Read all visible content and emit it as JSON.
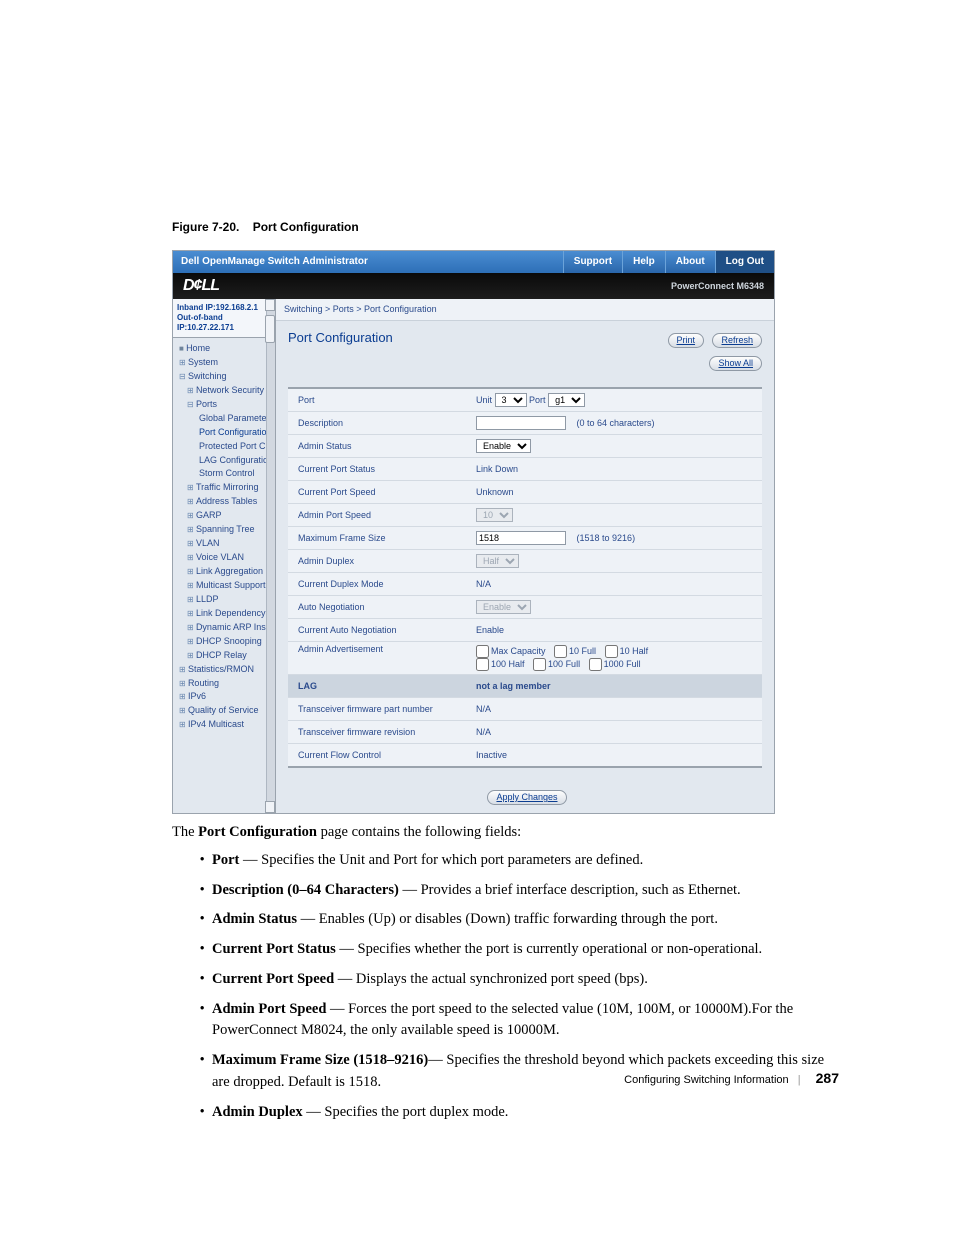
{
  "caption_prefix": "Figure 7-20.",
  "caption_title": "Port Configuration",
  "window_title": "Dell OpenManage Switch Administrator",
  "top_links": [
    "Support",
    "Help",
    "About",
    "Log Out"
  ],
  "brand_logo": "D¢LL",
  "brand_right": "PowerConnect M6348",
  "nav_ip_inband": "Inband IP:192.168.2.1",
  "nav_ip_oob": "Out-of-band IP:10.27.22.171",
  "nav_items": {
    "home": "Home",
    "system": "System",
    "switching": "Switching",
    "network_security": "Network Security",
    "ports": "Ports",
    "global_param": "Global Paramete",
    "port_config": "Port Configuratio",
    "protected_port": "Protected Port C",
    "lag_config": "LAG Configuratio",
    "storm_control": "Storm Control",
    "traffic_mirroring": "Traffic Mirroring",
    "address_tables": "Address Tables",
    "garp": "GARP",
    "spanning_tree": "Spanning Tree",
    "vlan": "VLAN",
    "voice_vlan": "Voice VLAN",
    "link_agg": "Link Aggregation",
    "multicast": "Multicast Support",
    "lldp": "LLDP",
    "link_dep": "Link Dependency",
    "dyn_arp": "Dynamic ARP Insp",
    "dhcp_snoop": "DHCP Snooping",
    "dhcp_relay": "DHCP Relay",
    "stats": "Statistics/RMON",
    "routing": "Routing",
    "ipv6": "IPv6",
    "qos": "Quality of Service",
    "ipv4m": "IPv4 Multicast"
  },
  "breadcrumb": "Switching > Ports > Port Configuration",
  "page_title": "Port Configuration",
  "btn_print": "Print",
  "btn_refresh": "Refresh",
  "btn_showall": "Show All",
  "btn_apply": "Apply Changes",
  "rows": {
    "port_label": "Port",
    "port_unit_label": "Unit",
    "port_unit_value": "3",
    "port_port_label": "Port",
    "port_port_value": "g1",
    "desc_label": "Description",
    "desc_value": "",
    "desc_hint": "(0 to 64 characters)",
    "admin_status_label": "Admin Status",
    "admin_status_value": "Enable",
    "cur_status_label": "Current Port Status",
    "cur_status_value": "Link Down",
    "cur_speed_label": "Current Port Speed",
    "cur_speed_value": "Unknown",
    "admin_speed_label": "Admin Port Speed",
    "admin_speed_value": "10",
    "mfs_label": "Maximum Frame Size",
    "mfs_value": "1518",
    "mfs_hint": "(1518 to 9216)",
    "admin_duplex_label": "Admin Duplex",
    "admin_duplex_value": "Half",
    "cur_duplex_label": "Current Duplex Mode",
    "cur_duplex_value": "N/A",
    "autoneg_label": "Auto Negotiation",
    "autoneg_value": "Enable",
    "cur_autoneg_label": "Current Auto Negotiation",
    "cur_autoneg_value": "Enable",
    "adv_label": "Admin Advertisement",
    "adv_opts": [
      "Max Capacity",
      "10 Full",
      "10 Half",
      "100 Half",
      "100 Full",
      "1000 Full"
    ],
    "lag_label": "LAG",
    "lag_value": "not a lag member",
    "fw_part_label": "Transceiver firmware part number",
    "fw_part_value": "N/A",
    "fw_rev_label": "Transceiver firmware revision",
    "fw_rev_value": "N/A",
    "flow_label": "Current Flow Control",
    "flow_value": "Inactive"
  },
  "body": {
    "lead": "The Port Configuration page contains the following fields:",
    "items": [
      {
        "b": "Port",
        "t": " — Specifies the Unit and Port for which port parameters are defined."
      },
      {
        "b": "Description (0–64 Characters)",
        "t": " — Provides a brief interface description, such as Ethernet."
      },
      {
        "b": "Admin Status",
        "t": " — Enables (Up) or disables (Down) traffic forwarding through the port."
      },
      {
        "b": "Current Port Status",
        "t": " — Specifies whether the port is currently operational or non-operational."
      },
      {
        "b": "Current Port Speed",
        "t": " — Displays the actual synchronized port speed (bps)."
      },
      {
        "b": "Admin Port Speed",
        "t": " — Forces the port speed to the selected value (10M, 100M, or 10000M).For the PowerConnect M8024, the only available speed is 10000M."
      },
      {
        "b": "Maximum Frame Size (1518–9216)",
        "t": "— Specifies the threshold beyond which packets exceeding this size are dropped. Default is 1518."
      },
      {
        "b": "Admin Duplex",
        "t": " — Specifies the port duplex mode."
      }
    ]
  },
  "footer_section": "Configuring Switching Information",
  "footer_page": "287"
}
